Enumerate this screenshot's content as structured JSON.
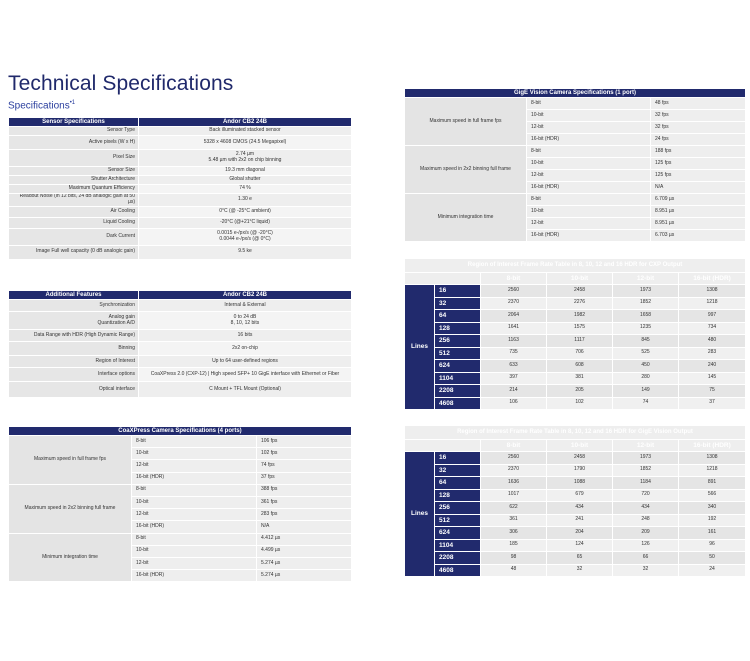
{
  "page": {
    "title": "Technical Specifications",
    "subtitle": "Specifications",
    "subtitle_mark": "•1"
  },
  "sensor": {
    "head": [
      "Sensor Specifications",
      "Andor CB2 24B"
    ],
    "rows": [
      [
        "Sensor Type",
        "Back illuminated stacked sensor"
      ],
      [
        "Active pixels (W x H)",
        "5328 x 4608 CMOS (24.5 Megapixel)"
      ],
      [
        "Pixel Size",
        "2.74 µm\n5.48 µm with 2x2 on chip binning"
      ],
      [
        "Sensor Size",
        "19.3 mm diagonal"
      ],
      [
        "Shutter Architecture",
        "Global shutter"
      ],
      [
        "Maximum Quantum Efficiency",
        "74 %"
      ],
      [
        "Readout Noise (in 12 bits, 24 dB analogic gain at 50 µs)",
        "1.30 e"
      ],
      [
        "Air Cooling",
        "0°C (@ -25°C ambient)"
      ],
      [
        "Liquid Cooling",
        "-20°C (@+21°C liquid)"
      ],
      [
        "Dark Current",
        "0.0015 e-/px/s (@ -20°C)\n0.0044 e-/px/s (@ 0°C)"
      ],
      [
        "Image Full well capacity (0 dB analogic gain)",
        "9.5 ke"
      ]
    ]
  },
  "features": {
    "head": [
      "Additional Features",
      "Andor CB2 24B"
    ],
    "rows": [
      [
        "Synchronization",
        "Internal & External"
      ],
      [
        "Analog gain\nQuantization A/D",
        "0 to 24 dB\n8, 10, 12 bits"
      ],
      [
        "Data Range with HDR (High Dynamic Range)",
        "16 bits"
      ],
      [
        "Binning",
        "2x2 on-chip"
      ],
      [
        "Region of Interest",
        "Up to 64 user-defined regions"
      ],
      [
        "Interface options",
        "CoaXPress 2.0 (CXP-12) | High speed SFP+ 10 GigE interface with Ethernet or Fiber"
      ],
      [
        "Optical interface",
        "C Mount + TFL Mount (Optional)"
      ]
    ]
  },
  "coax": {
    "head": "CoaXPress Camera Specifications (4 ports)",
    "groups": [
      {
        "label": "Maximum speed in full frame fps",
        "rows": [
          [
            "8-bit",
            "106 fps"
          ],
          [
            "10-bit",
            "102 fps"
          ],
          [
            "12-bit",
            "74 fps"
          ],
          [
            "16-bit (HDR)",
            "37 fps"
          ]
        ]
      },
      {
        "label": "Maximum speed in 2x2 binning full frame",
        "rows": [
          [
            "8-bit",
            "388 fps"
          ],
          [
            "10-bit",
            "361 fps"
          ],
          [
            "12-bit",
            "283 fps"
          ],
          [
            "16-bit (HDR)",
            "N/A"
          ]
        ]
      },
      {
        "label": "Minimum integration time",
        "rows": [
          [
            "8-bit",
            "4.412 µs"
          ],
          [
            "10-bit",
            "4.499 µs"
          ],
          [
            "12-bit",
            "5.274 µs"
          ],
          [
            "16-bit (HDR)",
            "5.274 µs"
          ]
        ]
      }
    ]
  },
  "gige": {
    "head": "GigE Vision Camera Specifications (1 port)",
    "groups": [
      {
        "label": "Maximum speed in full frame fps",
        "rows": [
          [
            "8-bit",
            "48 fps"
          ],
          [
            "10-bit",
            "32 fps"
          ],
          [
            "12-bit",
            "32 fps"
          ],
          [
            "16-bit (HDR)",
            "24 fps"
          ]
        ]
      },
      {
        "label": "Maximum speed in 2x2 binning full frame",
        "rows": [
          [
            "8-bit",
            "188 fps"
          ],
          [
            "10-bit",
            "125 fps"
          ],
          [
            "12-bit",
            "125 fps"
          ],
          [
            "16-bit (HDR)",
            "N/A"
          ]
        ]
      },
      {
        "label": "Minimum integration time",
        "rows": [
          [
            "8-bit",
            "6.709 µs"
          ],
          [
            "10-bit",
            "8.951 µs"
          ],
          [
            "12-bit",
            "8.951 µs"
          ],
          [
            "16-bit (HDR)",
            "6.703 µs"
          ]
        ]
      }
    ]
  },
  "roi_cxp": {
    "title": "Region of Interest Frame Rate Table in 8, 10, 12 and 16 HDR for CXP Output",
    "lines_label": "Lines",
    "cols": [
      "8-bit",
      "10-bit",
      "12-bit",
      "16-bit (HDR)"
    ],
    "rows": [
      [
        "16",
        "2560",
        "2458",
        "1973",
        "1308"
      ],
      [
        "32",
        "2370",
        "2276",
        "1852",
        "1218"
      ],
      [
        "64",
        "2064",
        "1982",
        "1658",
        "997"
      ],
      [
        "128",
        "1641",
        "1575",
        "1235",
        "734"
      ],
      [
        "256",
        "1163",
        "1117",
        "845",
        "480"
      ],
      [
        "512",
        "735",
        "706",
        "525",
        "283"
      ],
      [
        "624",
        "633",
        "608",
        "450",
        "240"
      ],
      [
        "1104",
        "397",
        "381",
        "280",
        "145"
      ],
      [
        "2208",
        "214",
        "205",
        "149",
        "75"
      ],
      [
        "4608",
        "106",
        "102",
        "74",
        "37"
      ]
    ]
  },
  "roi_gige": {
    "title": "Region of Interest Frame Rate Table in 8, 10, 12 and 16 HDR for GigE Vision Output",
    "lines_label": "Lines",
    "cols": [
      "8-bit",
      "10-bit",
      "12-bit",
      "16-bit (HDR)"
    ],
    "rows": [
      [
        "16",
        "2560",
        "2458",
        "1973",
        "1308"
      ],
      [
        "32",
        "2370",
        "1790",
        "1852",
        "1218"
      ],
      [
        "64",
        "1636",
        "1088",
        "1184",
        "891"
      ],
      [
        "128",
        "1017",
        "679",
        "720",
        "566"
      ],
      [
        "256",
        "622",
        "434",
        "434",
        "340"
      ],
      [
        "512",
        "361",
        "241",
        "248",
        "192"
      ],
      [
        "624",
        "306",
        "204",
        "209",
        "161"
      ],
      [
        "1104",
        "185",
        "124",
        "126",
        "96"
      ],
      [
        "2208",
        "98",
        "65",
        "66",
        "50"
      ],
      [
        "4608",
        "48",
        "32",
        "32",
        "24"
      ]
    ]
  }
}
